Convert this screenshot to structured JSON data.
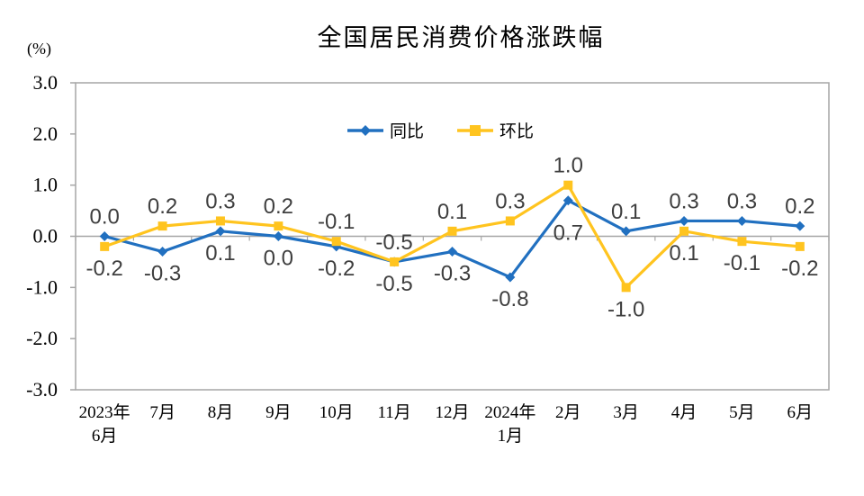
{
  "title": "全国居民消费价格涨跌幅",
  "y_axis_unit": "(%)",
  "legend": {
    "items": [
      "同比",
      "环比"
    ]
  },
  "colors": {
    "yoy_blue": "#2170C0",
    "mom_yellow": "#FFC41F",
    "axis_gray": "#A6A6A6",
    "data_label": "#3F3F3F"
  },
  "chart_data": {
    "type": "line",
    "title": "全国居民消费价格涨跌幅",
    "ylabel": "(%)",
    "xlabel": "",
    "ylim": [
      -3.0,
      3.0
    ],
    "ytick_step": 1.0,
    "yticks": [
      "3.0",
      "2.0",
      "1.0",
      "0.0",
      "-1.0",
      "-2.0",
      "-3.0"
    ],
    "grid": false,
    "zero_line": true,
    "legend_position": "top-center",
    "categories": [
      [
        "2023年",
        "6月"
      ],
      [
        "7月"
      ],
      [
        "8月"
      ],
      [
        "9月"
      ],
      [
        "10月"
      ],
      [
        "11月"
      ],
      [
        "12月"
      ],
      [
        "2024年",
        "1月"
      ],
      [
        "2月"
      ],
      [
        "3月"
      ],
      [
        "4月"
      ],
      [
        "5月"
      ],
      [
        "6月"
      ]
    ],
    "series": [
      {
        "key": "yoy",
        "name": "同比",
        "color": "#2170C0",
        "marker": "diamond",
        "values": [
          0.0,
          -0.3,
          0.1,
          0.0,
          -0.2,
          -0.5,
          -0.3,
          -0.8,
          0.7,
          0.1,
          0.3,
          0.3,
          0.2
        ],
        "label_extra_dy": {
          "8": 12
        }
      },
      {
        "key": "mom",
        "name": "环比",
        "color": "#FFC41F",
        "marker": "square",
        "values": [
          -0.2,
          0.2,
          0.3,
          0.2,
          -0.1,
          -0.5,
          0.1,
          0.3,
          1.0,
          -1.0,
          0.1,
          -0.1,
          -0.2
        ],
        "label_extra_dy": {}
      }
    ]
  }
}
